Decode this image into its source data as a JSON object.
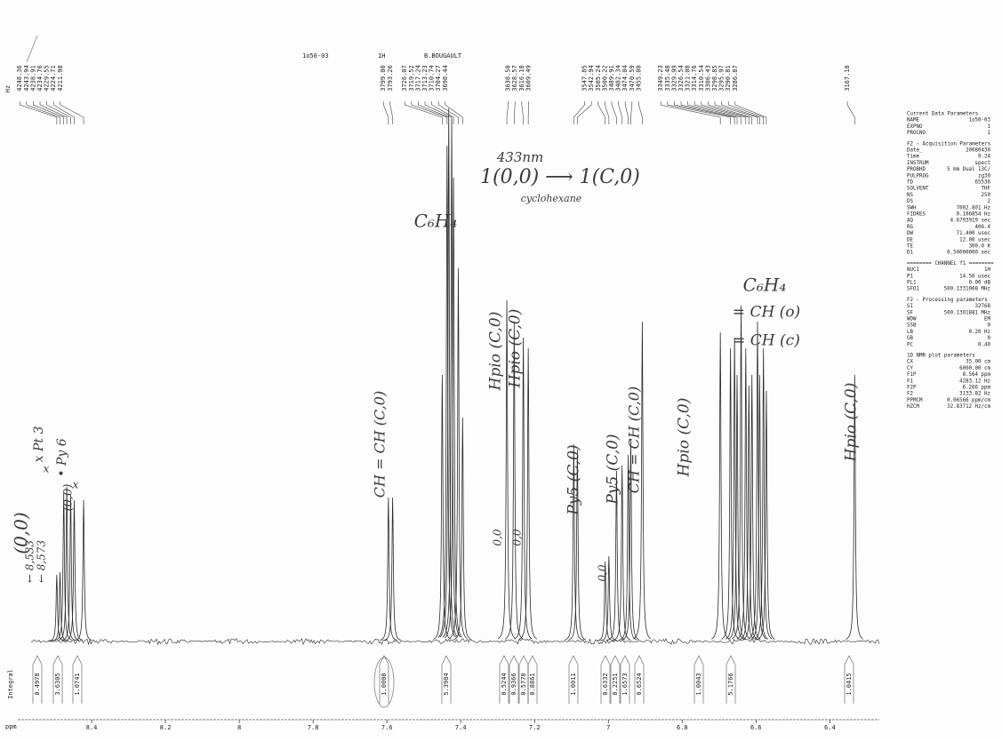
{
  "header": [
    "1o50-03",
    "1H",
    "B.BOUGAULT"
  ],
  "chart_data": {
    "type": "spectrum",
    "x_label": "ppm",
    "xlim": [
      8.564,
      6.266
    ],
    "xticks": [
      8.4,
      8.2,
      8.0,
      7.8,
      7.6,
      7.4,
      7.2,
      7.0,
      6.8,
      6.6,
      6.4
    ],
    "hz_label": "Hz",
    "hzlim": [
      4283.12,
      3133.82
    ],
    "color": "#2b2b2b",
    "peaks": {
      "values": [
        4248.36,
        4243.94,
        4238.91,
        4234.76,
        4229.55,
        4224.71,
        4211.98,
        3799,
        3793.26,
        3726.07,
        3719.52,
        3717.24,
        3713.23,
        3710.74,
        3704.27,
        3698.44,
        3638.5,
        3628.57,
        3616.18,
        3609.49,
        3547.85,
        3542.94,
        3505.24,
        3500.22,
        3489.91,
        3482.34,
        3474.04,
        3470.59,
        3455,
        3349.23,
        3335.48,
        3329.99,
        3326.54,
        3321.08,
        3314.76,
        3310.54,
        3306.43,
        3298.85,
        3295.97,
        3290.81,
        3286.87,
        3167.18
      ],
      "value_labels": [
        "4248.36",
        "4243.94",
        "4238.91",
        "4234.76",
        "4229.55",
        "4224.71",
        "4211.98",
        "3799.00",
        "3793.26",
        "3726.07",
        "3719.52",
        "3717.24",
        "3713.23",
        "3710.74",
        "3704.27",
        "3698.44",
        "3638.50",
        "3628.57",
        "3616.18",
        "3609.49",
        "3547.85",
        "3542.94",
        "3505.24",
        "3500.22",
        "3489.91",
        "3482.34",
        "3474.04",
        "3470.59",
        "3455.00",
        "3349.23",
        "3335.48",
        "3329.99",
        "3326.54",
        "3321.08",
        "3314.76",
        "3310.54",
        "3306.43",
        "3298.85",
        "3295.97",
        "3290.81",
        "3286.87",
        "3167.18"
      ],
      "intensities": [
        12.5,
        13,
        28,
        29,
        27.5,
        26.5,
        26.5,
        27,
        27,
        50,
        93,
        100,
        98,
        87,
        70,
        42,
        64,
        60,
        57,
        55,
        37,
        36,
        15,
        16,
        32,
        33,
        35,
        38,
        60,
        58,
        55,
        57,
        50,
        63,
        55,
        48,
        50,
        60,
        50,
        55,
        47,
        50
      ]
    },
    "integrals": {
      "label": "Integral",
      "values": [
        0.4978,
        3.6305,
        1.0741,
        1,
        5.3984,
        0.5244,
        0.9366,
        0.5778,
        0.8861,
        1.0011,
        0.6332,
        0.2251,
        1.6573,
        0.6524,
        1.0043,
        5.1766,
        1.0415
      ],
      "value_labels": [
        "0.4978",
        "3.6305",
        "1.0741",
        "1.0000",
        "5.3984",
        "0.5244",
        "0.9366",
        "0.5778",
        "0.8861",
        "1.0011",
        "0.6332",
        "0.2251",
        "1.6573",
        "0.6524",
        "1.0043",
        "5.1766",
        "1.0415"
      ]
    }
  },
  "parameters": [
    {
      "title": "Current Data Parameters",
      "rows": [
        [
          "NAME",
          "1o50-03"
        ],
        [
          "EXPNO",
          "1"
        ],
        [
          "PROCNO",
          "1"
        ]
      ]
    },
    {
      "title": "F2 - Acquisition Parameters",
      "rows": [
        [
          "Date_",
          "20080430"
        ],
        [
          "Time",
          "9.24"
        ],
        [
          "INSTRUM",
          "spect"
        ],
        [
          "PROBHD",
          "5 mm Dual 13C/"
        ],
        [
          "PULPROG",
          "zg30"
        ],
        [
          "TD",
          "65536"
        ],
        [
          "SOLVENT",
          "THF"
        ],
        [
          "NS",
          "250"
        ],
        [
          "DS",
          "2"
        ],
        [
          "SWH",
          "7002.801 Hz"
        ],
        [
          "FIDRES",
          "0.106854 Hz"
        ],
        [
          "AQ",
          "4.6793919 sec"
        ],
        [
          "RG",
          "406.4"
        ],
        [
          "DW",
          "71.400 usec"
        ],
        [
          "DE",
          "12.00 usec"
        ],
        [
          "TE",
          "300.0 K"
        ],
        [
          "D1",
          "0.50000000 sec"
        ]
      ]
    },
    {
      "title": "======== CHANNEL f1 ========",
      "rows": [
        [
          "NUC1",
          "1H"
        ],
        [
          "P1",
          "14.50 usec"
        ],
        [
          "PL1",
          "0.00 dB"
        ],
        [
          "SFO1",
          "500.1331008 MHz"
        ]
      ]
    },
    {
      "title": "F2 - Processing parameters",
      "rows": [
        [
          "SI",
          "32768"
        ],
        [
          "SF",
          "500.1301881 MHz"
        ],
        [
          "WDW",
          "EM"
        ],
        [
          "SSB",
          "0"
        ],
        [
          "LB",
          "0.20 Hz"
        ],
        [
          "GB",
          "0"
        ],
        [
          "PC",
          "0.40"
        ]
      ]
    },
    {
      "title": "1D NMR plot parameters",
      "rows": [
        [
          "CX",
          "35.00 cm"
        ],
        [
          "CY",
          "6000.00 cm"
        ],
        [
          "F1P",
          "8.564 ppm"
        ],
        [
          "F1",
          "4283.12 Hz"
        ],
        [
          "F2P",
          "6.266 ppm"
        ],
        [
          "F2",
          "3133.82 Hz"
        ],
        [
          "PPMCM",
          "0.06566 ppm/cm"
        ],
        [
          "HZCM",
          "32.83712 Hz/cm"
        ]
      ]
    }
  ],
  "annotations": [
    "433nm",
    "1(0,0) ⟶ 1(C,0)",
    "cyclohexane",
    "C₆H₄",
    "C₆H₄",
    "= CH (o)",
    "= CH (c)",
    "CH = CH (C,0)",
    "Hpio (C,0)",
    "Hpio (C,0)",
    "Py5 (C,0)",
    "Py5 (C,0)",
    "CH = CH (C,0)",
    "Hpio (C,0)",
    "Hpio (C,0)",
    "0,0",
    "0,0",
    "0,0",
    "x Pt 3",
    "• Py 6",
    "(0,0)",
    "← 8,533",
    "← 8,573",
    "(0,0)",
    "x",
    "x"
  ]
}
